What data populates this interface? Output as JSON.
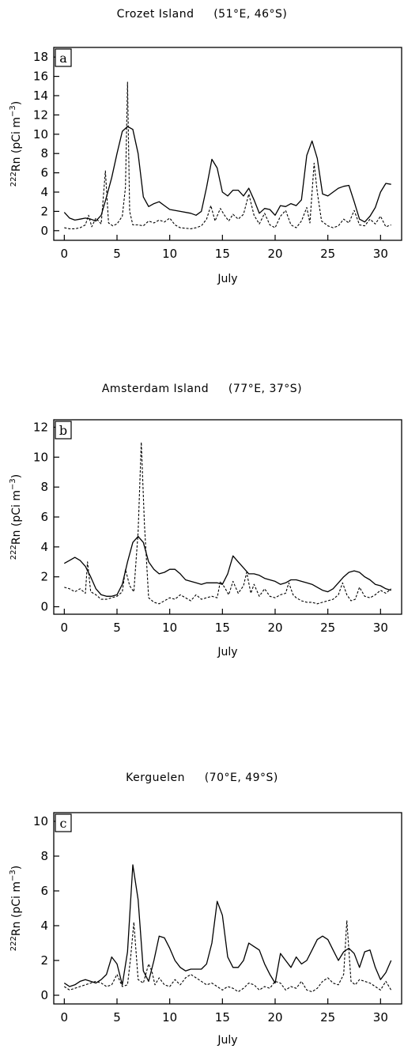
{
  "chart_data": [
    {
      "type": "line",
      "title": "Crozet Island     (51°E, 46°S)",
      "panel_label": "a",
      "xlabel": "July",
      "ylabel_sup": "222",
      "ylabel_main": "Rn  (pCi  m",
      "ylabel_exp": "−3",
      "ylabel_close": ")",
      "xlim": [
        -1,
        32
      ],
      "ylim": [
        -1,
        19
      ],
      "xticks": [
        0,
        5,
        10,
        15,
        20,
        25,
        30
      ],
      "yticks": [
        0,
        2,
        4,
        6,
        8,
        10,
        12,
        14,
        16,
        18
      ],
      "series": [
        {
          "style": "solid",
          "x": [
            0,
            0.5,
            1,
            1.5,
            2,
            2.5,
            3,
            3.5,
            4,
            4.5,
            5,
            5.5,
            6,
            6.5,
            7,
            7.5,
            8,
            8.5,
            9,
            9.5,
            10,
            11,
            12,
            12.5,
            13,
            13.5,
            14,
            14.5,
            15,
            15.5,
            16,
            16.5,
            17,
            17.5,
            18,
            18.5,
            19,
            19.5,
            20,
            20.5,
            21,
            21.5,
            22,
            22.5,
            23,
            23.5,
            24,
            24.5,
            25,
            25.5,
            26,
            26.5,
            27,
            27.5,
            28,
            28.5,
            29,
            29.5,
            30,
            30.5,
            31
          ],
          "y": [
            1.9,
            1.3,
            1.1,
            1.2,
            1.3,
            1.2,
            1.0,
            1.6,
            3.5,
            5.5,
            8.0,
            10.3,
            10.8,
            10.5,
            8.0,
            3.5,
            2.5,
            2.8,
            3.0,
            2.6,
            2.2,
            2.0,
            1.8,
            1.6,
            2.0,
            4.5,
            7.4,
            6.5,
            4.0,
            3.6,
            4.2,
            4.2,
            3.6,
            4.4,
            3.2,
            1.8,
            2.3,
            2.2,
            1.6,
            2.6,
            2.5,
            2.8,
            2.6,
            3.2,
            7.8,
            9.3,
            7.5,
            3.8,
            3.6,
            4.0,
            4.4,
            4.6,
            4.7,
            3.0,
            1.2,
            0.9,
            1.5,
            2.4,
            4.0,
            4.9,
            4.8
          ]
        },
        {
          "style": "dashed",
          "x": [
            0,
            0.5,
            1,
            1.5,
            2,
            2.3,
            2.6,
            3,
            3.5,
            3.9,
            4.2,
            4.6,
            5,
            5.5,
            5.8,
            6.0,
            6.2,
            6.5,
            7,
            7.5,
            8,
            8.5,
            9,
            9.5,
            10,
            10.5,
            11,
            12,
            12.5,
            13,
            13.5,
            13.9,
            14.3,
            14.8,
            15.2,
            15.6,
            16,
            16.5,
            17,
            17.5,
            18,
            18.5,
            19,
            19.5,
            20,
            20.5,
            21,
            21.5,
            22,
            22.5,
            23,
            23.3,
            23.7,
            24.0,
            24.4,
            25,
            25.5,
            26,
            26.5,
            27,
            27.5,
            28,
            28.5,
            29,
            29.5,
            30,
            30.5,
            31
          ],
          "y": [
            0.3,
            0.2,
            0.2,
            0.3,
            0.6,
            1.6,
            0.4,
            1.3,
            0.7,
            6.2,
            0.8,
            0.5,
            0.7,
            1.5,
            4.5,
            15.4,
            2.0,
            0.6,
            0.6,
            0.5,
            1.0,
            0.8,
            1.1,
            0.9,
            1.3,
            0.6,
            0.3,
            0.2,
            0.3,
            0.5,
            1.2,
            2.6,
            1.0,
            2.3,
            1.6,
            1.0,
            1.7,
            1.2,
            1.7,
            3.8,
            1.6,
            0.7,
            1.8,
            0.6,
            0.3,
            1.5,
            2.1,
            0.6,
            0.3,
            1.0,
            2.4,
            0.8,
            7.0,
            4.0,
            1.0,
            0.5,
            0.3,
            0.5,
            1.2,
            0.8,
            2.1,
            0.6,
            0.5,
            1.2,
            0.7,
            1.5,
            0.4,
            0.6
          ]
        }
      ]
    },
    {
      "type": "line",
      "title": "Amsterdam Island     (77°E, 37°S)",
      "panel_label": "b",
      "xlabel": "July",
      "ylabel_sup": "222",
      "ylabel_main": "Rn  (pCi  m",
      "ylabel_exp": "−3",
      "ylabel_close": ")",
      "xlim": [
        -1,
        32
      ],
      "ylim": [
        -0.5,
        12.5
      ],
      "xticks": [
        0,
        5,
        10,
        15,
        20,
        25,
        30
      ],
      "yticks": [
        0,
        2,
        4,
        6,
        8,
        10,
        12
      ],
      "series": [
        {
          "style": "solid",
          "x": [
            0,
            0.5,
            1,
            1.5,
            2,
            2.5,
            3,
            3.5,
            4,
            4.5,
            5,
            5.5,
            6,
            6.5,
            7,
            7.5,
            8,
            8.5,
            9,
            9.5,
            10,
            10.5,
            11,
            11.5,
            12,
            12.5,
            13,
            13.5,
            14,
            14.5,
            15,
            15.5,
            16,
            16.5,
            17,
            17.5,
            18,
            18.5,
            19,
            19.5,
            20,
            20.5,
            21,
            21.5,
            22,
            22.5,
            23,
            23.5,
            24,
            24.5,
            25,
            25.5,
            26,
            26.5,
            27,
            27.5,
            28,
            28.5,
            29,
            29.5,
            30,
            30.5,
            31
          ],
          "y": [
            2.9,
            3.1,
            3.3,
            3.1,
            2.7,
            2.0,
            1.2,
            0.8,
            0.7,
            0.7,
            0.8,
            1.5,
            3.0,
            4.3,
            4.7,
            4.3,
            3.0,
            2.5,
            2.2,
            2.3,
            2.5,
            2.5,
            2.2,
            1.8,
            1.7,
            1.6,
            1.5,
            1.6,
            1.6,
            1.6,
            1.5,
            2.2,
            3.4,
            3.0,
            2.6,
            2.2,
            2.2,
            2.1,
            1.9,
            1.8,
            1.7,
            1.5,
            1.6,
            1.8,
            1.8,
            1.7,
            1.6,
            1.5,
            1.3,
            1.1,
            1.0,
            1.2,
            1.6,
            2.0,
            2.3,
            2.4,
            2.3,
            2.0,
            1.8,
            1.5,
            1.4,
            1.2,
            1.1
          ]
        },
        {
          "style": "dashed",
          "x": [
            0,
            0.5,
            1,
            1.5,
            2,
            2.2,
            2.5,
            3,
            3.5,
            4,
            4.5,
            5,
            5.5,
            5.8,
            6.2,
            6.6,
            7.0,
            7.3,
            7.6,
            8,
            8.5,
            9,
            9.5,
            10,
            10.5,
            11,
            11.5,
            12,
            12.5,
            13,
            13.5,
            14,
            14.5,
            14.8,
            15.2,
            15.6,
            16,
            16.5,
            17,
            17.3,
            17.7,
            18,
            18.5,
            19,
            19.5,
            20,
            20.5,
            21,
            21.3,
            21.7,
            22,
            22.5,
            23,
            23.5,
            24,
            24.5,
            25,
            25.5,
            26,
            26.4,
            26.8,
            27.2,
            27.6,
            28,
            28.5,
            29,
            29.5,
            30,
            30.5,
            31
          ],
          "y": [
            1.3,
            1.2,
            1.0,
            1.2,
            0.9,
            3.0,
            1.0,
            0.8,
            0.5,
            0.5,
            0.6,
            0.7,
            1.0,
            2.5,
            1.4,
            1.0,
            5.0,
            11.0,
            5.5,
            0.6,
            0.3,
            0.2,
            0.4,
            0.6,
            0.5,
            0.8,
            0.6,
            0.4,
            0.8,
            0.5,
            0.6,
            0.7,
            0.6,
            1.7,
            1.3,
            0.8,
            1.7,
            0.9,
            1.4,
            2.3,
            0.9,
            1.5,
            0.7,
            1.2,
            0.7,
            0.6,
            0.8,
            0.9,
            1.6,
            0.8,
            0.6,
            0.4,
            0.3,
            0.3,
            0.2,
            0.3,
            0.4,
            0.5,
            0.8,
            1.6,
            0.8,
            0.4,
            0.5,
            1.3,
            0.7,
            0.6,
            0.8,
            1.1,
            0.9,
            1.2
          ]
        }
      ]
    },
    {
      "type": "line",
      "title": "Kerguelen     (70°E, 49°S)",
      "panel_label": "c",
      "xlabel": "July",
      "ylabel_sup": "222",
      "ylabel_main": "Rn  (pCi  m",
      "ylabel_exp": "−3",
      "ylabel_close": ")",
      "xlim": [
        -1,
        32
      ],
      "ylim": [
        -0.5,
        10.5
      ],
      "xticks": [
        0,
        5,
        10,
        15,
        20,
        25,
        30
      ],
      "yticks": [
        0,
        2,
        4,
        6,
        8,
        10
      ],
      "series": [
        {
          "style": "solid",
          "x": [
            0,
            0.5,
            1,
            1.5,
            2,
            2.5,
            3,
            3.5,
            4,
            4.5,
            5,
            5.5,
            6,
            6.5,
            7,
            7.5,
            8,
            8.5,
            9,
            9.5,
            10,
            10.5,
            11,
            11.5,
            12,
            12.5,
            13,
            13.5,
            14,
            14.5,
            15,
            15.5,
            16,
            16.5,
            17,
            17.5,
            18,
            18.5,
            19,
            19.5,
            20,
            20.5,
            21,
            21.5,
            22,
            22.5,
            23,
            23.5,
            24,
            24.5,
            25,
            25.5,
            26,
            26.5,
            27,
            27.5,
            28,
            28.5,
            29,
            29.5,
            30,
            30.5,
            31
          ],
          "y": [
            0.7,
            0.5,
            0.6,
            0.8,
            0.9,
            0.8,
            0.7,
            0.9,
            1.2,
            2.2,
            1.8,
            0.6,
            2.5,
            7.5,
            5.5,
            1.4,
            0.8,
            2.0,
            3.4,
            3.3,
            2.7,
            2.0,
            1.6,
            1.4,
            1.5,
            1.5,
            1.5,
            1.8,
            3.0,
            5.4,
            4.6,
            2.2,
            1.6,
            1.6,
            2.0,
            3.0,
            2.8,
            2.6,
            1.8,
            1.2,
            0.7,
            2.4,
            2.0,
            1.6,
            2.2,
            1.8,
            2.0,
            2.6,
            3.2,
            3.4,
            3.2,
            2.6,
            2.0,
            2.5,
            2.7,
            2.4,
            1.6,
            2.5,
            2.6,
            1.6,
            0.9,
            1.3,
            2.0
          ]
        },
        {
          "style": "dashed",
          "x": [
            0,
            0.5,
            1,
            1.5,
            2,
            2.5,
            3,
            3.5,
            4,
            4.5,
            5,
            5.5,
            6,
            6.3,
            6.6,
            7,
            7.5,
            8,
            8.3,
            8.6,
            9,
            9.5,
            10,
            10.5,
            11,
            11.5,
            12,
            12.5,
            13,
            13.5,
            14,
            14.5,
            15,
            15.5,
            16,
            16.5,
            17,
            17.5,
            18,
            18.5,
            19,
            19.5,
            20,
            20.5,
            21,
            21.5,
            22,
            22.5,
            23,
            23.5,
            24,
            24.5,
            25,
            25.5,
            26,
            26.5,
            26.8,
            27.2,
            27.6,
            28,
            28.5,
            29,
            29.5,
            30,
            30.5,
            31
          ],
          "y": [
            0.5,
            0.3,
            0.4,
            0.5,
            0.6,
            0.7,
            0.8,
            0.7,
            0.5,
            0.6,
            1.2,
            0.5,
            0.6,
            2.2,
            4.2,
            0.9,
            0.7,
            1.8,
            1.4,
            0.6,
            1.0,
            0.6,
            0.5,
            0.9,
            0.6,
            1.0,
            1.2,
            1.0,
            0.8,
            0.6,
            0.7,
            0.5,
            0.3,
            0.5,
            0.4,
            0.2,
            0.4,
            0.7,
            0.6,
            0.3,
            0.5,
            0.4,
            0.8,
            0.7,
            0.3,
            0.5,
            0.4,
            0.8,
            0.3,
            0.2,
            0.4,
            0.8,
            1.0,
            0.7,
            0.6,
            1.2,
            4.3,
            0.8,
            0.6,
            0.9,
            0.8,
            0.7,
            0.5,
            0.3,
            0.8,
            0.3
          ]
        }
      ]
    }
  ]
}
